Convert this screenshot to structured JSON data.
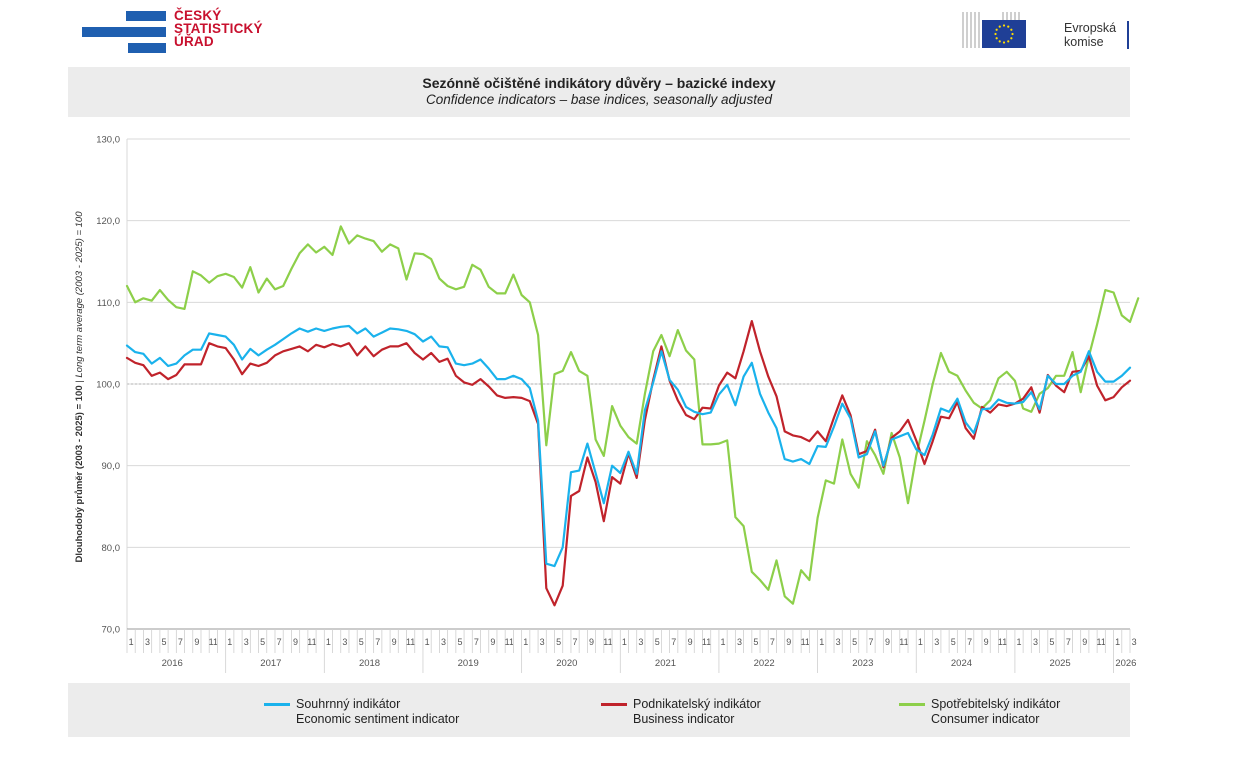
{
  "logo_left": {
    "line1": "ČESKÝ",
    "line2": "STATISTICKÝ",
    "line3": "ÚŘAD"
  },
  "logo_right": {
    "line1": "Evropská",
    "line2": "komise"
  },
  "title": "Sezónně očištěné indikátory důvěry – bazické indexy",
  "subtitle": "Confidence indicators – base indices, seasonally adjusted",
  "colors": {
    "economic": "#1ab2ec",
    "business": "#c0232b",
    "consumer": "#8dcf4a",
    "grid": "#d9d9d9",
    "reference": "#b0b0b0"
  },
  "legend": [
    {
      "cz": "Souhrnný indikátor",
      "en": "Economic sentiment indicator",
      "color": "#1ab2ec"
    },
    {
      "cz": "Podnikatelský indikátor",
      "en": "Business indicator",
      "color": "#c0232b"
    },
    {
      "cz": "Spotřebitelský indikátor",
      "en": "Consumer indicator",
      "color": "#8dcf4a"
    }
  ],
  "chart_data": {
    "type": "line",
    "title": "Sezónně očištěné indikátory důvěry – bazické indexy",
    "subtitle": "Confidence indicators – base indices, seasonally adjusted",
    "ylabel_cz": "Dlouhodobý průměr (2003 - 2025) = 100",
    "ylabel_sep": " | ",
    "ylabel_en": "Long term average (2003 - 2025) = 100",
    "ylim": [
      70,
      130
    ],
    "yticks": [
      "70,0",
      "80,0",
      "90,0",
      "100,0",
      "110,0",
      "120,0",
      "130,0"
    ],
    "reference_line": 100,
    "grid": true,
    "legend_position": "bottom",
    "month_tick_labels": [
      "1",
      "3",
      "5",
      "7",
      "9",
      "11"
    ],
    "years": [
      "2016",
      "2017",
      "2018",
      "2019",
      "2020",
      "2021",
      "2022",
      "2023",
      "2024",
      "2025",
      "2026"
    ],
    "x_start": "2016-01",
    "x_end": "2026-03",
    "series": [
      {
        "name": "Souhrnný indikátor",
        "name_en": "Economic sentiment indicator",
        "color": "#1ab2ec",
        "values": [
          104.7,
          103.9,
          103.7,
          102.5,
          103.2,
          102.2,
          102.5,
          103.5,
          104.2,
          104.2,
          106.2,
          106.0,
          105.8,
          104.8,
          103.0,
          104.3,
          103.5,
          104.2,
          104.8,
          105.5,
          106.2,
          106.8,
          106.4,
          106.8,
          106.5,
          106.8,
          107.0,
          107.1,
          106.2,
          106.8,
          105.8,
          106.3,
          106.8,
          106.7,
          106.5,
          106.1,
          105.2,
          105.8,
          104.6,
          104.5,
          102.5,
          102.3,
          102.5,
          103.0,
          101.9,
          100.6,
          100.6,
          101.0,
          100.6,
          99.5,
          95.5,
          78.0,
          77.7,
          80.0,
          89.2,
          89.4,
          92.7,
          89.1,
          85.4,
          90.0,
          89.1,
          91.7,
          89.0,
          96.8,
          100.2,
          104.0,
          100.5,
          99.3,
          97.2,
          96.6,
          96.3,
          96.5,
          98.7,
          99.9,
          97.4,
          100.9,
          102.6,
          98.8,
          96.5,
          94.6,
          90.8,
          90.5,
          90.8,
          90.2,
          92.4,
          92.3,
          94.8,
          97.6,
          95.8,
          91.0,
          91.4,
          94.2,
          90.0,
          93.2,
          93.6,
          94.0,
          92.0,
          91.3,
          93.8,
          97.0,
          96.6,
          98.2,
          95.3,
          94.0,
          96.9,
          97.0,
          98.1,
          97.7,
          97.6,
          97.8,
          99.0,
          96.9,
          101.0,
          100.0,
          100.0,
          101.0,
          101.5,
          104.0,
          101.5,
          100.3,
          100.3,
          101.0,
          102.0
        ]
      },
      {
        "name": "Podnikatelský indikátor",
        "name_en": "Business indicator",
        "color": "#c0232b",
        "values": [
          103.2,
          102.6,
          102.3,
          101.0,
          101.4,
          100.6,
          101.1,
          102.4,
          102.4,
          102.4,
          105.0,
          104.6,
          104.4,
          103.0,
          101.2,
          102.5,
          102.2,
          102.6,
          103.5,
          104.0,
          104.3,
          104.6,
          104.0,
          104.8,
          104.5,
          104.9,
          104.6,
          105.0,
          103.5,
          104.6,
          103.4,
          104.2,
          104.6,
          104.6,
          105.0,
          103.8,
          103.0,
          103.8,
          102.7,
          103.1,
          101.0,
          100.2,
          99.9,
          100.6,
          99.7,
          98.6,
          98.3,
          98.4,
          98.3,
          97.9,
          95.1,
          75.0,
          72.9,
          75.3,
          86.3,
          86.9,
          91.0,
          88.0,
          83.2,
          88.6,
          87.8,
          91.5,
          88.5,
          95.6,
          100.5,
          104.6,
          100.4,
          98.0,
          96.2,
          95.7,
          97.1,
          97.0,
          99.8,
          101.4,
          100.7,
          104.0,
          107.7,
          104.0,
          100.9,
          98.5,
          94.2,
          93.7,
          93.5,
          93.0,
          94.2,
          93.0,
          95.9,
          98.6,
          96.2,
          91.4,
          91.8,
          94.4,
          89.8,
          93.4,
          94.2,
          95.6,
          93.1,
          90.2,
          93.0,
          96.0,
          95.8,
          97.8,
          94.6,
          93.3,
          97.2,
          96.5,
          97.5,
          97.3,
          97.6,
          98.2,
          99.6,
          96.5,
          101.1,
          99.8,
          99.0,
          101.5,
          101.6,
          103.4,
          99.8,
          98.0,
          98.4,
          99.6,
          100.4
        ]
      },
      {
        "name": "Spotřebitelský indikátor",
        "name_en": "Consumer indicator",
        "color": "#8dcf4a",
        "values": [
          112.0,
          110.0,
          110.5,
          110.2,
          111.5,
          110.3,
          109.4,
          109.2,
          113.8,
          113.3,
          112.4,
          113.2,
          113.5,
          113.1,
          111.8,
          114.3,
          111.2,
          112.9,
          111.6,
          112.0,
          114.1,
          116.0,
          117.1,
          116.1,
          116.8,
          115.8,
          119.3,
          117.2,
          118.2,
          117.8,
          117.5,
          116.2,
          117.1,
          116.6,
          112.8,
          116.0,
          115.9,
          115.3,
          112.9,
          112.0,
          111.6,
          111.9,
          114.6,
          114.0,
          111.9,
          111.1,
          111.1,
          113.4,
          110.9,
          110.0,
          106.0,
          92.5,
          101.2,
          101.6,
          103.9,
          101.6,
          101.0,
          93.2,
          91.2,
          97.3,
          94.9,
          93.5,
          92.7,
          98.8,
          104.0,
          106.0,
          103.4,
          106.6,
          104.1,
          103.0,
          92.6,
          92.6,
          92.7,
          93.1,
          83.7,
          82.6,
          77.0,
          76.0,
          74.8,
          78.4,
          74.0,
          73.1,
          77.2,
          76.0,
          83.6,
          88.2,
          87.8,
          93.2,
          89.0,
          87.3,
          93.0,
          91.3,
          89.0,
          94.0,
          91.0,
          85.4,
          91.2,
          95.5,
          100.0,
          103.8,
          101.5,
          101.0,
          99.2,
          97.7,
          97.0,
          98.0,
          100.7,
          101.5,
          100.4,
          97.0,
          96.6,
          98.8,
          99.5,
          101.0,
          101.0,
          103.9,
          99.0,
          103.4,
          107.3,
          111.5,
          111.2,
          108.4,
          107.6,
          110.5
        ]
      }
    ]
  }
}
